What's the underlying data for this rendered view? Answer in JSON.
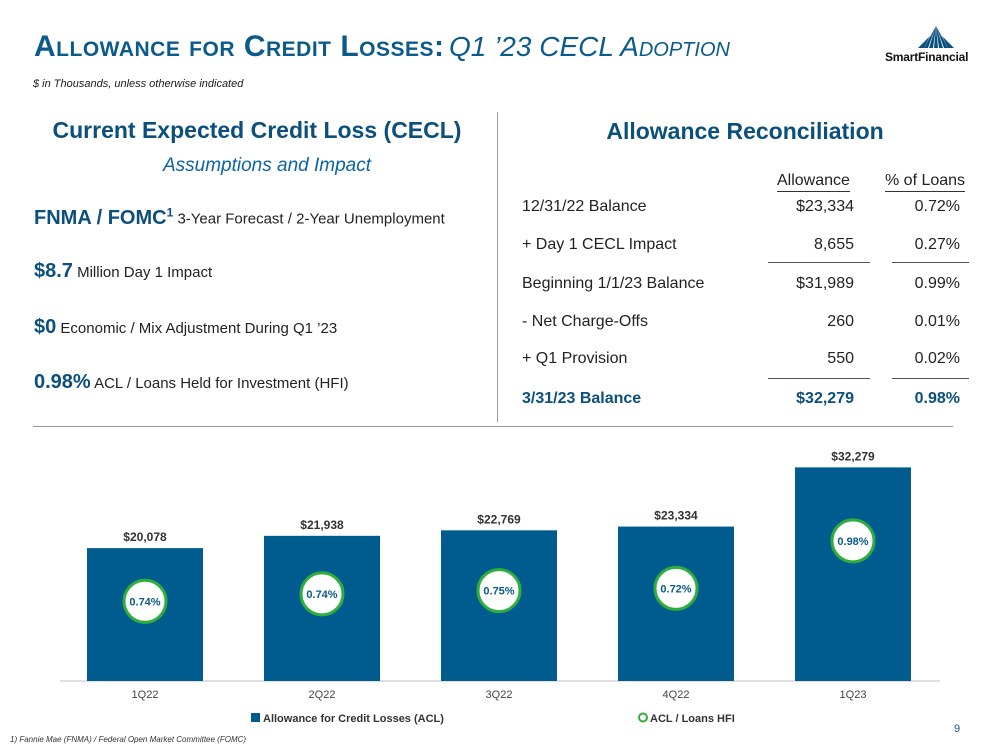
{
  "header": {
    "title_main": "Allowance for Credit Losses:",
    "title_sub": "Q1 ’23 CECL Adoption",
    "subtitle": "$ in Thousands, unless otherwise indicated",
    "logo_text": "SmartFinancial"
  },
  "left": {
    "heading": "Current Expected Credit Loss (CECL)",
    "subheading": "Assumptions and Impact",
    "items": [
      {
        "big": "FNMA / FOMC",
        "sup": "1",
        "text": "3-Year Forecast / 2-Year Unemployment"
      },
      {
        "big": "$8.7",
        "sup": "",
        "text": "Million Day 1 Impact"
      },
      {
        "big": "$0",
        "sup": "",
        "text": "Economic / Mix Adjustment During Q1 ’23"
      },
      {
        "big": "0.98%",
        "sup": "",
        "text": "ACL / Loans Held for Investment (HFI)"
      }
    ]
  },
  "right": {
    "heading": "Allowance Reconciliation",
    "col_allowance": "Allowance",
    "col_pct": "% of Loans",
    "rows": [
      {
        "label": "12/31/22 Balance",
        "value": "$23,334",
        "pct": "0.72%"
      },
      {
        "label": "+ Day 1 CECL Impact",
        "value": "8,655",
        "pct": "0.27%"
      },
      {
        "label": "Beginning 1/1/23 Balance",
        "value": "$31,989",
        "pct": "0.99%"
      },
      {
        "label": "- Net Charge-Offs",
        "value": "260",
        "pct": "0.01%"
      },
      {
        "label": "+ Q1 Provision",
        "value": "550",
        "pct": "0.02%"
      },
      {
        "label": "3/31/23 Balance",
        "value": "$32,279",
        "pct": "0.98%"
      }
    ]
  },
  "chart_data": {
    "type": "bar",
    "title": "",
    "categories": [
      "1Q22",
      "2Q22",
      "3Q22",
      "4Q22",
      "1Q23"
    ],
    "series": [
      {
        "name": "Allowance for Credit Losses (ACL)",
        "values": [
          20078,
          21938,
          22769,
          23334,
          32279
        ],
        "labels": [
          "$20,078",
          "$21,938",
          "$22,769",
          "$23,334",
          "$32,279"
        ]
      },
      {
        "name": "ACL / Loans HFI",
        "values": [
          0.74,
          0.74,
          0.75,
          0.72,
          0.98
        ],
        "labels": [
          "0.74%",
          "0.74%",
          "0.75%",
          "0.72%",
          "0.98%"
        ]
      }
    ],
    "ylim": [
      0,
      34000
    ],
    "bar_color": "#005b8f",
    "circle_color": "#2fae3e",
    "legend_position": "bottom"
  },
  "footer": {
    "footnote": "1)  Fannie Mae (FNMA) / Federal Open Market Committee (FOMC)",
    "page": "9"
  }
}
